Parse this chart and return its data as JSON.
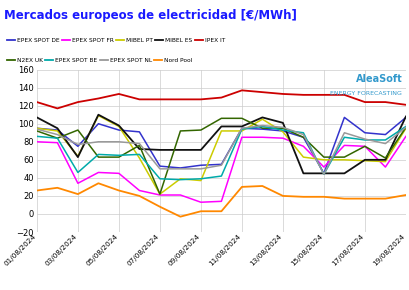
{
  "title": "Mercados europeos de electricidad [€/MWh]",
  "title_color": "#1a1aff",
  "background_color": "#ffffff",
  "grid_color": "#cccccc",
  "ylim": [
    -20,
    160
  ],
  "yticks": [
    -20,
    0,
    20,
    40,
    60,
    80,
    100,
    120,
    140,
    160
  ],
  "xtick_labels": [
    "01/08/2024",
    "03/08/2024",
    "05/08/2024",
    "07/08/2024",
    "09/08/2024",
    "11/08/2024",
    "13/08/2024",
    "15/08/2024",
    "17/08/2024",
    "19/08/2024"
  ],
  "series": {
    "EPEX SPOT DE": {
      "color": "#3333cc",
      "linewidth": 1.1,
      "values": [
        95,
        93,
        75,
        100,
        93,
        91,
        53,
        51,
        54,
        55,
        95,
        94,
        92,
        85,
        45,
        107,
        90,
        88,
        107
      ]
    },
    "EPEX SPOT FR": {
      "color": "#ff00ff",
      "linewidth": 1.1,
      "values": [
        80,
        79,
        34,
        46,
        45,
        26,
        21,
        21,
        13,
        14,
        85,
        85,
        84,
        75,
        52,
        76,
        75,
        52,
        86
      ]
    },
    "MIBEL PT": {
      "color": "#cccc00",
      "linewidth": 1.1,
      "values": [
        95,
        92,
        64,
        109,
        97,
        62,
        22,
        39,
        37,
        92,
        92,
        105,
        91,
        63,
        60,
        60,
        59,
        58,
        95
      ]
    },
    "MIBEL ES": {
      "color": "#111111",
      "linewidth": 1.3,
      "values": [
        107,
        95,
        63,
        110,
        98,
        72,
        71,
        71,
        71,
        97,
        97,
        107,
        101,
        45,
        45,
        45,
        60,
        60,
        108
      ]
    },
    "IPEX IT": {
      "color": "#cc0000",
      "linewidth": 1.3,
      "values": [
        124,
        117,
        124,
        128,
        133,
        127,
        127,
        127,
        127,
        129,
        137,
        135,
        133,
        132,
        132,
        132,
        124,
        124,
        121
      ]
    },
    "N2EX UK": {
      "color": "#336600",
      "linewidth": 1.1,
      "values": [
        92,
        84,
        93,
        63,
        63,
        76,
        22,
        92,
        93,
        106,
        106,
        95,
        95,
        85,
        63,
        63,
        75,
        62,
        96
      ]
    },
    "EPEX SPOT BE": {
      "color": "#00aaaa",
      "linewidth": 1.1,
      "values": [
        86,
        84,
        46,
        66,
        65,
        66,
        39,
        38,
        39,
        42,
        94,
        97,
        93,
        90,
        44,
        85,
        82,
        82,
        97
      ]
    },
    "EPEX SPOT NL": {
      "color": "#999999",
      "linewidth": 1.1,
      "values": [
        94,
        88,
        77,
        80,
        80,
        78,
        50,
        50,
        50,
        54,
        95,
        98,
        96,
        88,
        44,
        90,
        83,
        78,
        96
      ]
    },
    "Nord Pool": {
      "color": "#ff8800",
      "linewidth": 1.3,
      "values": [
        26,
        29,
        22,
        34,
        26,
        20,
        8,
        -3,
        3,
        3,
        30,
        31,
        20,
        19,
        19,
        17,
        17,
        17,
        21
      ]
    }
  },
  "legend_row1": [
    {
      "label": "EPEX SPOT DE",
      "color": "#3333cc"
    },
    {
      "label": "EPEX SPOT FR",
      "color": "#ff00ff"
    },
    {
      "label": "MIBEL PT",
      "color": "#cccc00"
    },
    {
      "label": "MIBEL ES",
      "color": "#111111"
    },
    {
      "label": "IPEX IT",
      "color": "#cc0000"
    }
  ],
  "legend_row2": [
    {
      "label": "N2EX UK",
      "color": "#336600"
    },
    {
      "label": "EPEX SPOT BE",
      "color": "#00aaaa"
    },
    {
      "label": "EPEX SPOT NL",
      "color": "#999999"
    },
    {
      "label": "Nord Pool",
      "color": "#ff8800"
    }
  ],
  "watermark_line1": "AleaSoft",
  "watermark_line2": "ENERGY FORECASTING"
}
